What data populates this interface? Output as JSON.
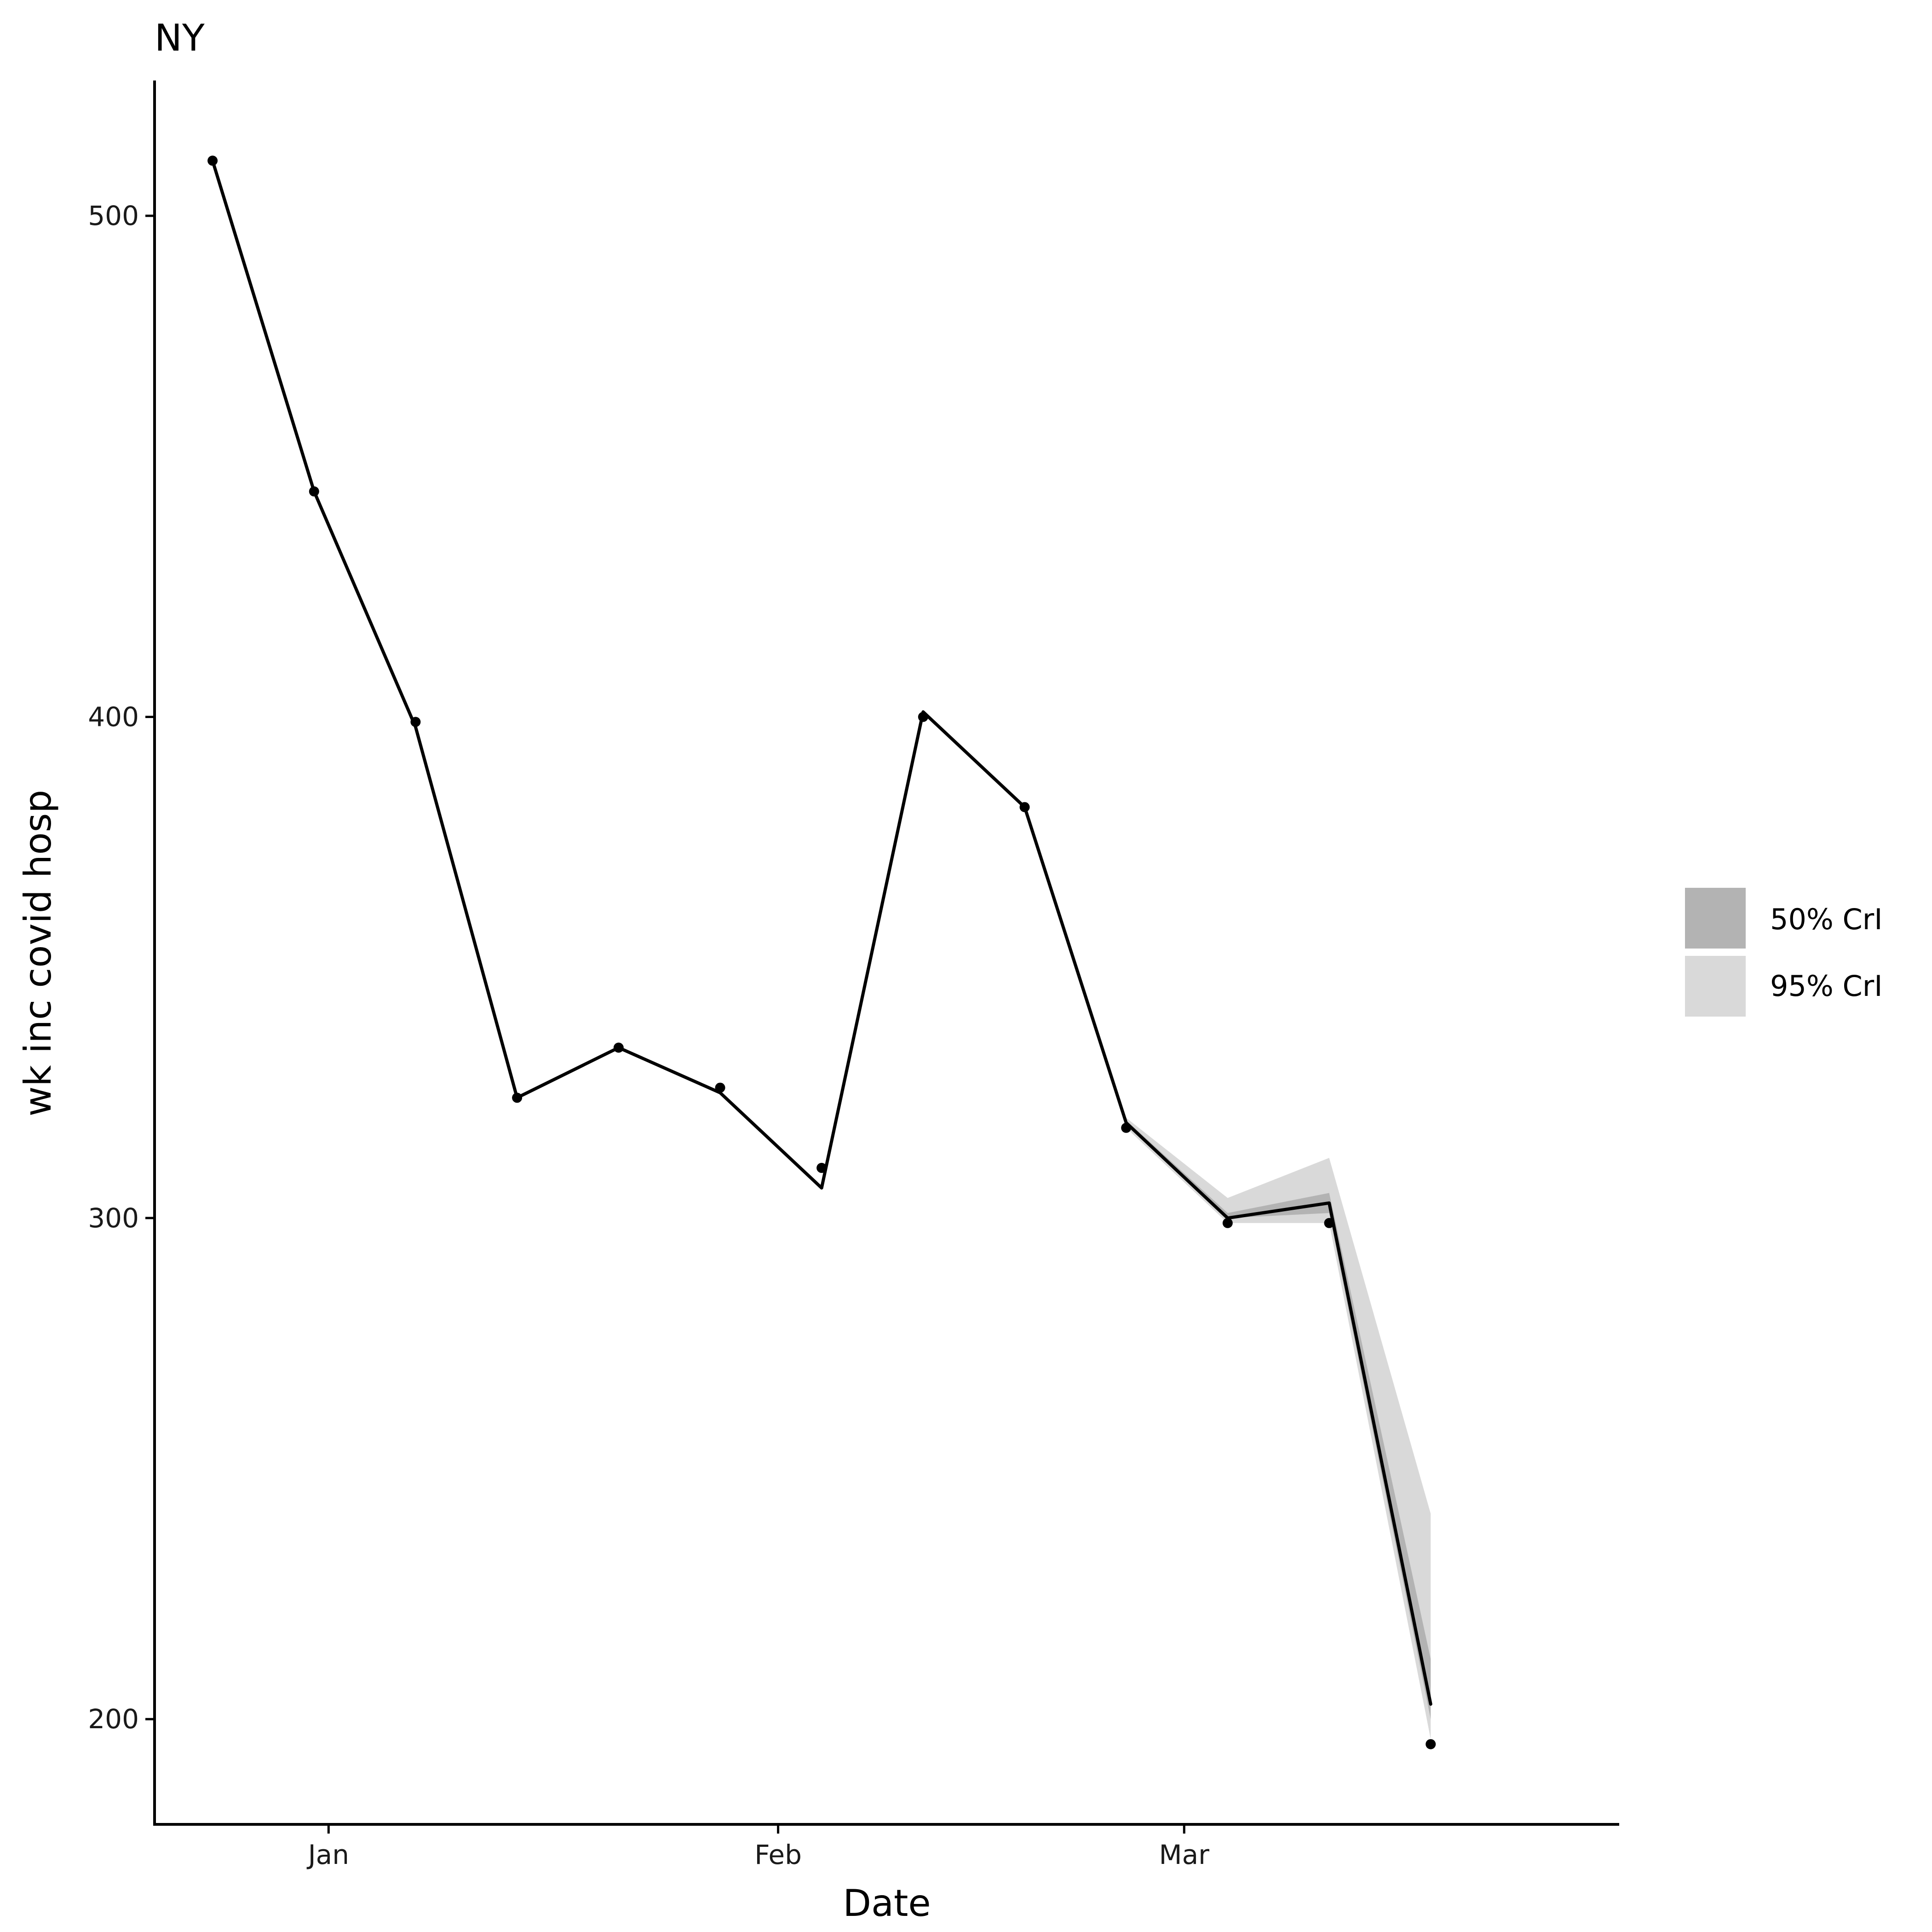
{
  "chart_data": {
    "type": "line",
    "title": "NY",
    "xlabel": "Date",
    "ylabel": "wk inc covid hosp",
    "ylim": [
      179,
      527
    ],
    "xlim": [
      "2022-12-20",
      "2023-03-31"
    ],
    "yticks": [
      200,
      300,
      400,
      500
    ],
    "xticks": [
      {
        "date": "2023-01-01",
        "label": "Jan"
      },
      {
        "date": "2023-02-01",
        "label": "Feb"
      },
      {
        "date": "2023-03-01",
        "label": "Mar"
      }
    ],
    "grid": false,
    "legend_position": "right",
    "legend": [
      {
        "label": "50% CrI",
        "color": "#b3b3b3"
      },
      {
        "label": "95% CrI",
        "color": "#d9d9d9"
      }
    ],
    "series": [
      {
        "name": "observed",
        "style": "points",
        "color": "#000000",
        "x": [
          "2022-12-24",
          "2022-12-31",
          "2023-01-07",
          "2023-01-14",
          "2023-01-21",
          "2023-01-28",
          "2023-02-04",
          "2023-02-11",
          "2023-02-18",
          "2023-02-25",
          "2023-03-04",
          "2023-03-11",
          "2023-03-18"
        ],
        "y": [
          511,
          445,
          399,
          324,
          334,
          326,
          310,
          400,
          382,
          318,
          299,
          299,
          195
        ]
      },
      {
        "name": "median",
        "style": "line",
        "color": "#000000",
        "x": [
          "2022-12-24",
          "2022-12-31",
          "2023-01-07",
          "2023-01-14",
          "2023-01-21",
          "2023-01-28",
          "2023-02-04",
          "2023-02-11",
          "2023-02-18",
          "2023-02-25",
          "2023-03-04",
          "2023-03-11",
          "2023-03-18"
        ],
        "y": [
          511,
          445,
          398,
          324,
          334,
          325,
          306,
          401,
          382,
          319,
          300,
          303,
          203
        ]
      }
    ],
    "bands": [
      {
        "name": "95% CrI",
        "color": "#d9d9d9",
        "x": [
          "2023-02-25",
          "2023-03-04",
          "2023-03-11",
          "2023-03-18"
        ],
        "lower": [
          318,
          299,
          299,
          196
        ],
        "upper": [
          320,
          304,
          312,
          241
        ]
      },
      {
        "name": "50% CrI",
        "color": "#b3b3b3",
        "x": [
          "2023-02-25",
          "2023-03-04",
          "2023-03-11",
          "2023-03-18"
        ],
        "lower": [
          318.5,
          300,
          301,
          200
        ],
        "upper": [
          319.5,
          301,
          305,
          212
        ]
      }
    ]
  }
}
